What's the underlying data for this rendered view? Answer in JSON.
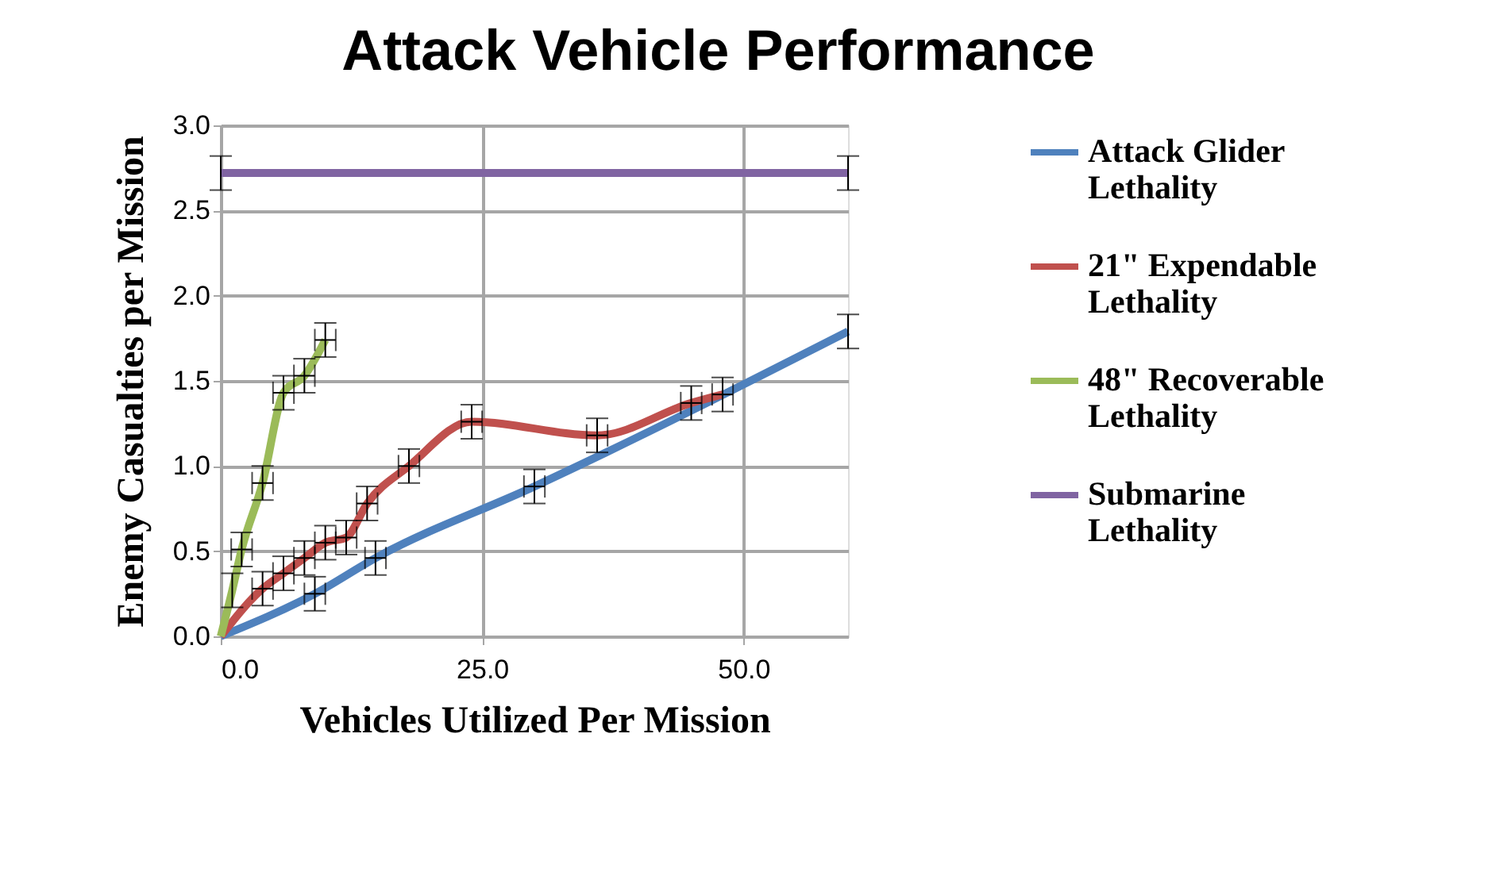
{
  "chart_data": {
    "type": "line",
    "title": "Attack Vehicle Performance",
    "xlabel": "Vehicles Utilized Per Mission",
    "ylabel": "Enemy Casualties per Mission",
    "xlim": [
      0,
      60
    ],
    "ylim": [
      0,
      3
    ],
    "xticks": [
      {
        "value": 0,
        "label": "0.0"
      },
      {
        "value": 25,
        "label": "25.0"
      },
      {
        "value": 50,
        "label": "50.0"
      }
    ],
    "yticks": [
      {
        "value": 0,
        "label": "0.0"
      },
      {
        "value": 0.5,
        "label": "0.5"
      },
      {
        "value": 1,
        "label": "1.0"
      },
      {
        "value": 1.5,
        "label": "1.5"
      },
      {
        "value": 2,
        "label": "2.0"
      },
      {
        "value": 2.5,
        "label": "2.5"
      },
      {
        "value": 3,
        "label": "3.0"
      }
    ],
    "grid": true,
    "legend": "right",
    "marker": "none",
    "line_style": "solid",
    "series": [
      {
        "name": "Attack Glider Lethality",
        "color": "#4f81bd",
        "x": [
          0,
          9,
          14.8,
          30,
          60
        ],
        "values": [
          0,
          0.25,
          0.46,
          0.88,
          1.79
        ],
        "errors": [
          null,
          0.1,
          0.1,
          0.1,
          0.1
        ],
        "xerrors": [
          null,
          1,
          1,
          1,
          null
        ]
      },
      {
        "name": "21\" Expendable Lethality",
        "color": "#c0504d",
        "x": [
          0,
          4,
          6,
          8,
          10,
          12,
          14,
          18,
          24,
          36,
          45,
          48
        ],
        "values": [
          0,
          0.28,
          0.37,
          0.46,
          0.55,
          0.58,
          0.78,
          1.0,
          1.26,
          1.18,
          1.37,
          1.42
        ],
        "errors": [
          null,
          0.1,
          0.1,
          0.1,
          0.1,
          0.1,
          0.1,
          0.1,
          0.1,
          0.1,
          0.1,
          0.1
        ],
        "xerrors": [
          null,
          1,
          1,
          1,
          1,
          1,
          1,
          1,
          1,
          1,
          1,
          1
        ]
      },
      {
        "name": "48\" Recoverable Lethality",
        "color": "#9bbb59",
        "x": [
          0,
          1.1,
          2,
          4,
          6,
          8,
          10
        ],
        "values": [
          0,
          0.27,
          0.51,
          0.9,
          1.43,
          1.53,
          1.74
        ],
        "errors": [
          null,
          0.1,
          0.1,
          0.1,
          0.1,
          0.1,
          0.1
        ],
        "xerrors": [
          null,
          null,
          1,
          1,
          1,
          1,
          1
        ]
      },
      {
        "name": "Submarine Lethality",
        "color": "#8064a2",
        "x": [
          0,
          60
        ],
        "values": [
          2.72,
          2.72
        ],
        "errors": [
          0.1,
          0.1
        ]
      }
    ]
  }
}
